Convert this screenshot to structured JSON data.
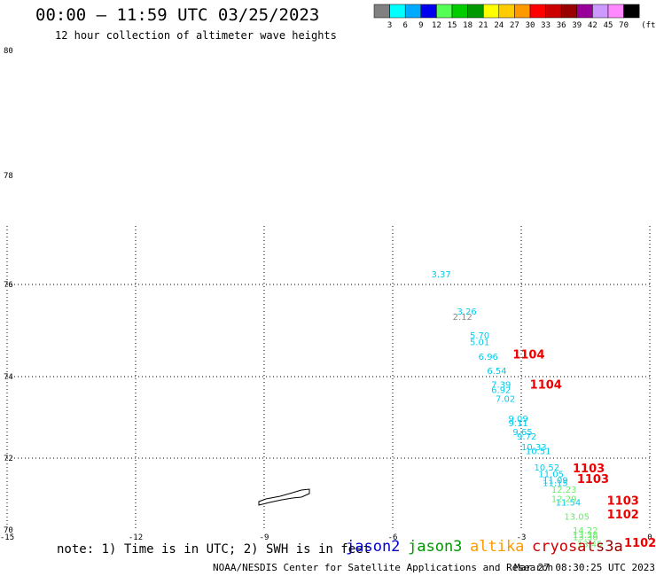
{
  "header": {
    "title": "00:00 — 11:59 UTC 03/25/2023",
    "subtitle": "12 hour collection of altimeter wave heights"
  },
  "colorbar": {
    "unit": "(ft)",
    "bins": [
      {
        "label": "3",
        "color": "#808080"
      },
      {
        "label": "6",
        "color": "#00ffff"
      },
      {
        "label": "9",
        "color": "#00aaff"
      },
      {
        "label": "12",
        "color": "#0000ee"
      },
      {
        "label": "15",
        "color": "#55ff55"
      },
      {
        "label": "18",
        "color": "#00cc00"
      },
      {
        "label": "21",
        "color": "#009900"
      },
      {
        "label": "24",
        "color": "#ffff00"
      },
      {
        "label": "27",
        "color": "#ffcc00"
      },
      {
        "label": "30",
        "color": "#ff9900"
      },
      {
        "label": "33",
        "color": "#ff0000"
      },
      {
        "label": "36",
        "color": "#cc0000"
      },
      {
        "label": "39",
        "color": "#990000"
      },
      {
        "label": "42",
        "color": "#990099"
      },
      {
        "label": "45",
        "color": "#cc99ff"
      },
      {
        "label": "70",
        "color": "#ff88ff"
      },
      {
        "label": "",
        "color": "#000000"
      }
    ]
  },
  "footer": {
    "note": "note: 1) Time is in UTC; 2) SWH is in feet",
    "credit": "NOAA/NESDIS Center for Satellite Applications and Research",
    "timestamp": "Mar 27 08:30:25 UTC 2023",
    "satellites": [
      {
        "name": "jason2",
        "color": "#0000cc"
      },
      {
        "name": "jason3",
        "color": "#009900"
      },
      {
        "name": "altika",
        "color": "#ff9900"
      },
      {
        "name": "cryosat",
        "color": "#cc0000"
      },
      {
        "name": "s3a",
        "color": "#990000"
      }
    ]
  },
  "chart_data": {
    "type": "scatter",
    "xlim": [
      -15,
      0
    ],
    "ylim": [
      70,
      80
    ],
    "x_ticks": [
      "-15",
      "-12",
      "-9",
      "-6",
      "-3",
      "0"
    ],
    "y_ticks": [
      "70",
      "72",
      "74",
      "76",
      "78",
      "80"
    ],
    "grid": true,
    "series": [
      {
        "name": "jason2",
        "color": "#00ccee",
        "points": [
          {
            "x": -5.1,
            "y": 76.13,
            "label": "3.37"
          },
          {
            "x": -4.5,
            "y": 75.35,
            "label": "3.26"
          },
          {
            "x": -4.2,
            "y": 74.83,
            "label": "5.70"
          },
          {
            "x": -4.2,
            "y": 74.68,
            "label": "5.01"
          },
          {
            "x": -4.0,
            "y": 74.37,
            "label": "6.96"
          },
          {
            "x": -3.8,
            "y": 74.06,
            "label": "6.54"
          },
          {
            "x": -3.7,
            "y": 73.73,
            "label": "7.39"
          },
          {
            "x": -3.7,
            "y": 73.6,
            "label": "6.92"
          },
          {
            "x": -3.6,
            "y": 73.38,
            "label": "7.02"
          },
          {
            "x": -3.3,
            "y": 72.89,
            "label": "9.09"
          },
          {
            "x": -3.3,
            "y": 72.78,
            "label": "9.11"
          },
          {
            "x": -3.2,
            "y": 72.57,
            "label": "9.65"
          },
          {
            "x": -3.1,
            "y": 72.46,
            "label": "9.72"
          },
          {
            "x": -3.0,
            "y": 72.2,
            "label": "10.33"
          },
          {
            "x": -2.9,
            "y": 72.1,
            "label": "10.51"
          },
          {
            "x": -2.7,
            "y": 71.65,
            "label": "10.52"
          },
          {
            "x": -2.6,
            "y": 71.47,
            "label": "11.05"
          },
          {
            "x": -2.5,
            "y": 71.3,
            "label": "11.09"
          },
          {
            "x": -2.5,
            "y": 71.22,
            "label": "11.15"
          },
          {
            "x": -2.2,
            "y": 70.68,
            "label": "11.54"
          }
        ]
      },
      {
        "name": "jason3",
        "color": "#66ee66",
        "points": [
          {
            "x": -2.3,
            "y": 71.04,
            "label": "12.23"
          },
          {
            "x": -2.3,
            "y": 70.78,
            "label": "12.29"
          },
          {
            "x": -2.0,
            "y": 70.28,
            "label": "13.05"
          },
          {
            "x": -1.8,
            "y": 69.9,
            "label": "14.22"
          },
          {
            "x": -1.8,
            "y": 69.78,
            "label": "13.38"
          },
          {
            "x": -1.8,
            "y": 69.72,
            "label": "13.36"
          },
          {
            "x": -1.7,
            "y": 69.52,
            "label": "13.45"
          }
        ]
      },
      {
        "name": "cryosat",
        "color": "#888888",
        "points": [
          {
            "x": -4.6,
            "y": 75.23,
            "label": "2.12"
          }
        ]
      },
      {
        "name": "pressure",
        "color": "#ee0000",
        "points": [
          {
            "x": -3.2,
            "y": 74.39,
            "label": "1104"
          },
          {
            "x": -2.8,
            "y": 73.71,
            "label": "1104"
          },
          {
            "x": -1.8,
            "y": 71.6,
            "label": "1103"
          },
          {
            "x": -1.7,
            "y": 71.31,
            "label": "1103"
          },
          {
            "x": -1.0,
            "y": 70.7,
            "label": "1103"
          },
          {
            "x": -1.0,
            "y": 70.32,
            "label": "1102"
          },
          {
            "x": -0.6,
            "y": 69.53,
            "label": "1102"
          }
        ]
      }
    ]
  }
}
